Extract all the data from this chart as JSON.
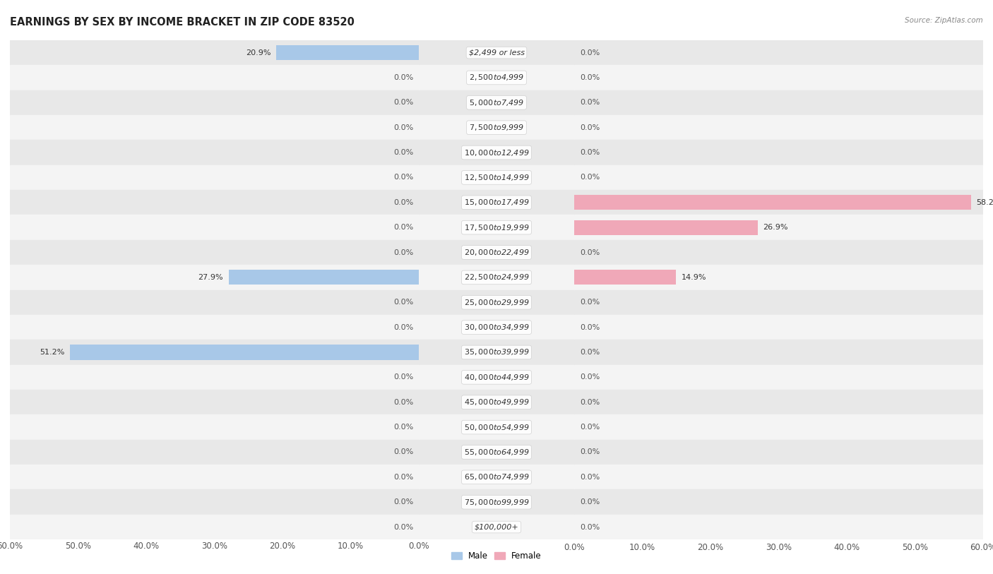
{
  "title": "EARNINGS BY SEX BY INCOME BRACKET IN ZIP CODE 83520",
  "source": "Source: ZipAtlas.com",
  "categories": [
    "$2,499 or less",
    "$2,500 to $4,999",
    "$5,000 to $7,499",
    "$7,500 to $9,999",
    "$10,000 to $12,499",
    "$12,500 to $14,999",
    "$15,000 to $17,499",
    "$17,500 to $19,999",
    "$20,000 to $22,499",
    "$22,500 to $24,999",
    "$25,000 to $29,999",
    "$30,000 to $34,999",
    "$35,000 to $39,999",
    "$40,000 to $44,999",
    "$45,000 to $49,999",
    "$50,000 to $54,999",
    "$55,000 to $64,999",
    "$65,000 to $74,999",
    "$75,000 to $99,999",
    "$100,000+"
  ],
  "male_values": [
    20.9,
    0.0,
    0.0,
    0.0,
    0.0,
    0.0,
    0.0,
    0.0,
    0.0,
    27.9,
    0.0,
    0.0,
    51.2,
    0.0,
    0.0,
    0.0,
    0.0,
    0.0,
    0.0,
    0.0
  ],
  "female_values": [
    0.0,
    0.0,
    0.0,
    0.0,
    0.0,
    0.0,
    58.2,
    26.9,
    0.0,
    14.9,
    0.0,
    0.0,
    0.0,
    0.0,
    0.0,
    0.0,
    0.0,
    0.0,
    0.0,
    0.0
  ],
  "male_color": "#a8c8e8",
  "female_color": "#f0a8b8",
  "male_label": "Male",
  "female_label": "Female",
  "xlim": 60.0,
  "bar_height": 0.6,
  "bg_color_odd": "#ebebeb",
  "bg_color_even": "#f8f8f8",
  "row_bg_odd": "#e8e8e8",
  "row_bg_even": "#f4f4f4",
  "title_fontsize": 10.5,
  "cat_fontsize": 8,
  "val_fontsize": 8,
  "tick_fontsize": 8.5,
  "source_fontsize": 7.5,
  "legend_fontsize": 8.5
}
